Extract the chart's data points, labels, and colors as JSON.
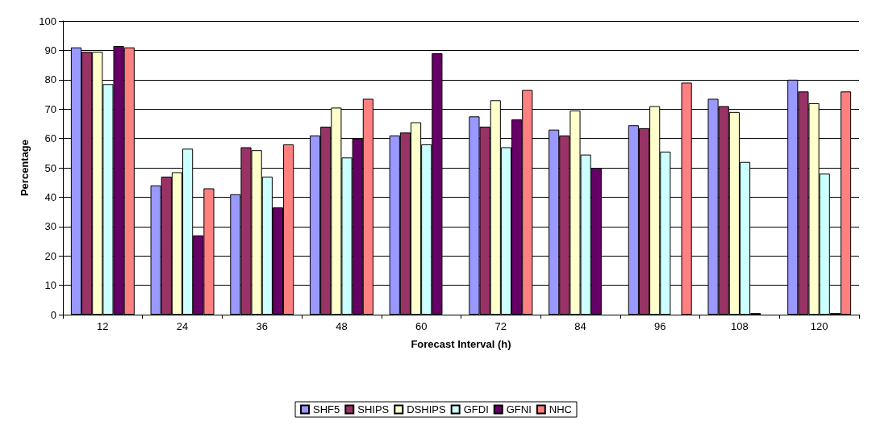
{
  "chart_data": {
    "type": "bar",
    "xlabel": "Forecast Interval (h)",
    "ylabel": "Percentage",
    "categories": [
      "12",
      "24",
      "36",
      "48",
      "60",
      "72",
      "84",
      "96",
      "108",
      "120"
    ],
    "series": [
      {
        "name": "SHF5",
        "color": "#9999ff",
        "values": [
          91,
          44,
          41,
          61,
          61,
          67.5,
          63,
          64.5,
          73.5,
          80
        ]
      },
      {
        "name": "SHIPS",
        "color": "#993366",
        "values": [
          89.5,
          47,
          57,
          64,
          62,
          64,
          61,
          63.5,
          71,
          76
        ]
      },
      {
        "name": "DSHIPS",
        "color": "#ffffcc",
        "values": [
          89.5,
          48.5,
          56,
          70.5,
          65.5,
          73,
          69.5,
          71,
          69,
          72
        ]
      },
      {
        "name": "GFDI",
        "color": "#ccffff",
        "values": [
          78.5,
          56.5,
          47,
          53.5,
          58,
          57,
          54.5,
          55.5,
          52,
          48
        ]
      },
      {
        "name": "GFNI",
        "color": "#660066",
        "values": [
          91.5,
          27,
          36.5,
          60,
          89,
          66.5,
          50,
          null,
          0.5,
          0.5
        ]
      },
      {
        "name": "NHC",
        "color": "#ff8080",
        "values": [
          91,
          43,
          58,
          73.5,
          null,
          76.5,
          null,
          79,
          null,
          76
        ]
      }
    ],
    "ylim": [
      0,
      100
    ],
    "yticks": [
      0,
      10,
      20,
      30,
      40,
      50,
      60,
      70,
      80,
      90,
      100
    ],
    "grid": "y",
    "legend": "bottom"
  }
}
